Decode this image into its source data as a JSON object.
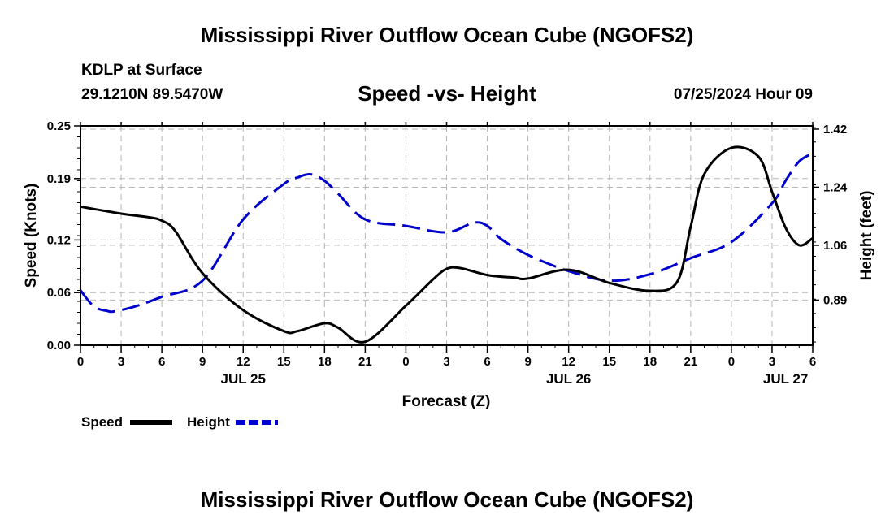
{
  "header": {
    "title": "Mississippi River Outflow Ocean Cube (NGOFS2)",
    "station": "KDLP at Surface",
    "coords": "29.1210N  89.5470W",
    "subtitle": "Speed -vs- Height",
    "datetime": "07/25/2024 Hour 09"
  },
  "footer": {
    "title": "Mississippi River Outflow Ocean Cube (NGOFS2)"
  },
  "chart_data": {
    "type": "line",
    "title": "Speed -vs- Height",
    "xlabel": "Forecast (Z)",
    "ylabel": "Speed (Knots)",
    "y2label": "Height (feet)",
    "xlim": [
      0,
      54
    ],
    "ylim": [
      0,
      0.25
    ],
    "y2lim": [
      0.75,
      1.43
    ],
    "x_ticks": [
      0,
      3,
      6,
      9,
      12,
      15,
      18,
      21,
      24,
      27,
      30,
      33,
      36,
      39,
      42,
      45,
      48,
      51,
      54
    ],
    "x_tick_labels": [
      "0",
      "3",
      "6",
      "9",
      "12",
      "15",
      "18",
      "21",
      "0",
      "3",
      "6",
      "9",
      "12",
      "15",
      "18",
      "21",
      "0",
      "3",
      "6"
    ],
    "date_labels": [
      {
        "x": 12,
        "label": "JUL 25"
      },
      {
        "x": 36,
        "label": "JUL 26"
      },
      {
        "x": 52,
        "label": "JUL 27"
      }
    ],
    "y_ticks": [
      0.0,
      0.06,
      0.12,
      0.19,
      0.25
    ],
    "y_tick_labels": [
      "0.00",
      "0.06",
      "0.12",
      "0.19",
      "0.25"
    ],
    "y2_ticks": [
      0.89,
      1.06,
      1.24,
      1.42
    ],
    "y2_tick_labels": [
      "0.89",
      "1.06",
      "1.24",
      "1.42"
    ],
    "legend": [
      {
        "name": "Speed",
        "color": "#000000",
        "dash": "solid"
      },
      {
        "name": "Height",
        "color": "#0000cc",
        "dash": "dashed"
      }
    ],
    "series": [
      {
        "name": "Speed",
        "axis": "left",
        "color": "#000000",
        "dash": "solid",
        "x": [
          0,
          3,
          5,
          6,
          7,
          9,
          12,
          15,
          16,
          18,
          19,
          21,
          24,
          26,
          27,
          28,
          30,
          32,
          33,
          36,
          39,
          42,
          44,
          45,
          46,
          48,
          50,
          51,
          52,
          53,
          54
        ],
        "values": [
          0.158,
          0.15,
          0.146,
          0.142,
          0.13,
          0.082,
          0.04,
          0.016,
          0.016,
          0.025,
          0.02,
          0.004,
          0.045,
          0.075,
          0.087,
          0.088,
          0.08,
          0.077,
          0.076,
          0.086,
          0.071,
          0.062,
          0.072,
          0.135,
          0.195,
          0.225,
          0.215,
          0.175,
          0.134,
          0.114,
          0.122
        ]
      },
      {
        "name": "Height",
        "axis": "right",
        "color": "#0000cc",
        "dash": "dashed",
        "x": [
          0,
          1,
          2,
          2.5,
          4,
          6,
          9,
          12,
          15,
          16,
          17,
          18,
          19,
          21,
          24,
          27,
          29,
          30,
          31,
          33,
          36,
          39,
          42,
          45,
          48,
          51,
          52,
          53,
          54
        ],
        "values": [
          0.92,
          0.87,
          0.856,
          0.855,
          0.87,
          0.9,
          0.95,
          1.14,
          1.25,
          1.27,
          1.28,
          1.26,
          1.22,
          1.14,
          1.12,
          1.1,
          1.13,
          1.12,
          1.08,
          1.03,
          0.98,
          0.95,
          0.97,
          1.02,
          1.07,
          1.19,
          1.26,
          1.32,
          1.345
        ]
      }
    ]
  }
}
